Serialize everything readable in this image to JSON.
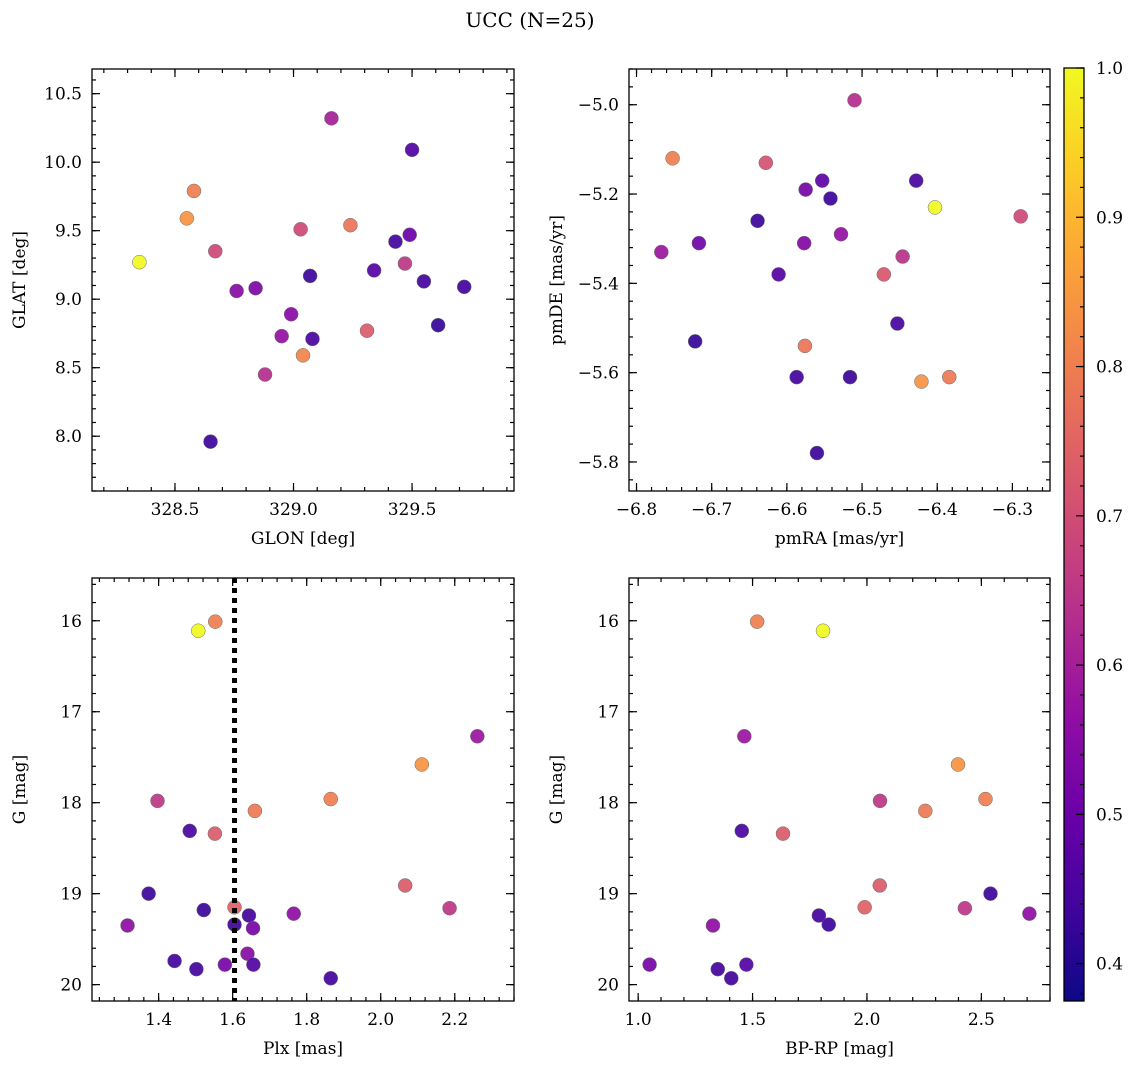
{
  "title": "UCC (N=25)",
  "colorbar": {
    "range": [
      0.375,
      1.0
    ],
    "ticks": [
      "0.4",
      "0.5",
      "0.6",
      "0.7",
      "0.8",
      "0.9",
      "1.0"
    ],
    "tick_values": [
      0.4,
      0.5,
      0.6,
      0.7,
      0.8,
      0.9,
      1.0
    ],
    "colormap": "plasma"
  },
  "chart_data": [
    {
      "type": "scatter",
      "xlabel": "GLON [deg]",
      "ylabel": "GLAT [deg]",
      "xlim": [
        328.15,
        329.93
      ],
      "ylim": [
        7.6,
        10.68
      ],
      "xticks": [
        328.5,
        329.0,
        329.5
      ],
      "xtick_labels": [
        "328.5",
        "329.0",
        "329.5"
      ],
      "yticks": [
        8.0,
        8.5,
        9.0,
        9.5,
        10.0,
        10.5
      ],
      "ytick_labels": [
        "8.0",
        "8.5",
        "9.0",
        "9.5",
        "10.0",
        "10.5"
      ],
      "invert_y": false,
      "dotted_vline": null,
      "points": [
        {
          "x": 328.35,
          "y": 9.27,
          "c": 1.0
        },
        {
          "x": 328.58,
          "y": 9.79,
          "c": 0.8
        },
        {
          "x": 328.55,
          "y": 9.59,
          "c": 0.84
        },
        {
          "x": 328.67,
          "y": 9.35,
          "c": 0.69
        },
        {
          "x": 328.65,
          "y": 7.96,
          "c": 0.43
        },
        {
          "x": 328.76,
          "y": 9.06,
          "c": 0.55
        },
        {
          "x": 328.84,
          "y": 9.08,
          "c": 0.53
        },
        {
          "x": 328.88,
          "y": 8.45,
          "c": 0.63
        },
        {
          "x": 328.95,
          "y": 8.73,
          "c": 0.57
        },
        {
          "x": 328.99,
          "y": 8.89,
          "c": 0.55
        },
        {
          "x": 329.03,
          "y": 9.51,
          "c": 0.69
        },
        {
          "x": 329.04,
          "y": 8.59,
          "c": 0.81
        },
        {
          "x": 329.07,
          "y": 9.17,
          "c": 0.43
        },
        {
          "x": 329.08,
          "y": 8.71,
          "c": 0.45
        },
        {
          "x": 329.16,
          "y": 10.32,
          "c": 0.6
        },
        {
          "x": 329.24,
          "y": 9.54,
          "c": 0.78
        },
        {
          "x": 329.31,
          "y": 8.77,
          "c": 0.73
        },
        {
          "x": 329.34,
          "y": 9.21,
          "c": 0.47
        },
        {
          "x": 329.43,
          "y": 9.42,
          "c": 0.44
        },
        {
          "x": 329.47,
          "y": 9.26,
          "c": 0.65
        },
        {
          "x": 329.49,
          "y": 9.47,
          "c": 0.5
        },
        {
          "x": 329.5,
          "y": 10.09,
          "c": 0.46
        },
        {
          "x": 329.55,
          "y": 9.13,
          "c": 0.44
        },
        {
          "x": 329.61,
          "y": 8.81,
          "c": 0.42
        },
        {
          "x": 329.72,
          "y": 9.09,
          "c": 0.44
        }
      ]
    },
    {
      "type": "scatter",
      "xlabel": "pmRA [mas/yr]",
      "ylabel": "pmDE [mas/yr]",
      "xlim": [
        -6.81,
        -6.25
      ],
      "ylim": [
        -5.865,
        -4.92
      ],
      "xticks": [
        -6.8,
        -6.7,
        -6.6,
        -6.5,
        -6.4,
        -6.3
      ],
      "xtick_labels": [
        "−6.8",
        "−6.7",
        "−6.6",
        "−6.5",
        "−6.4",
        "−6.3"
      ],
      "yticks": [
        -5.8,
        -5.6,
        -5.4,
        -5.2,
        -5.0
      ],
      "ytick_labels": [
        "−5.8",
        "−5.6",
        "−5.4",
        "−5.2",
        "−5.0"
      ],
      "invert_y": false,
      "dotted_vline": null,
      "points": [
        {
          "x": -6.51,
          "y": -4.99,
          "c": 0.63
        },
        {
          "x": -6.752,
          "y": -5.12,
          "c": 0.8
        },
        {
          "x": -6.628,
          "y": -5.13,
          "c": 0.71
        },
        {
          "x": -6.575,
          "y": -5.19,
          "c": 0.52
        },
        {
          "x": -6.553,
          "y": -5.17,
          "c": 0.48
        },
        {
          "x": -6.542,
          "y": -5.21,
          "c": 0.43
        },
        {
          "x": -6.428,
          "y": -5.17,
          "c": 0.45
        },
        {
          "x": -6.403,
          "y": -5.23,
          "c": 1.0
        },
        {
          "x": -6.289,
          "y": -5.25,
          "c": 0.69
        },
        {
          "x": -6.639,
          "y": -5.26,
          "c": 0.43
        },
        {
          "x": -6.528,
          "y": -5.29,
          "c": 0.57
        },
        {
          "x": -6.717,
          "y": -5.31,
          "c": 0.51
        },
        {
          "x": -6.577,
          "y": -5.31,
          "c": 0.54
        },
        {
          "x": -6.767,
          "y": -5.33,
          "c": 0.58
        },
        {
          "x": -6.446,
          "y": -5.34,
          "c": 0.64
        },
        {
          "x": -6.611,
          "y": -5.38,
          "c": 0.47
        },
        {
          "x": -6.471,
          "y": -5.38,
          "c": 0.72
        },
        {
          "x": -6.453,
          "y": -5.49,
          "c": 0.45
        },
        {
          "x": -6.722,
          "y": -5.53,
          "c": 0.42
        },
        {
          "x": -6.576,
          "y": -5.54,
          "c": 0.78
        },
        {
          "x": -6.587,
          "y": -5.61,
          "c": 0.44
        },
        {
          "x": -6.516,
          "y": -5.61,
          "c": 0.43
        },
        {
          "x": -6.421,
          "y": -5.62,
          "c": 0.84
        },
        {
          "x": -6.384,
          "y": -5.61,
          "c": 0.79
        },
        {
          "x": -6.56,
          "y": -5.78,
          "c": 0.43
        }
      ]
    },
    {
      "type": "scatter",
      "xlabel": "Plx [mas]",
      "ylabel": "G [mag]",
      "xlim": [
        1.22,
        2.36
      ],
      "ylim": [
        20.18,
        15.53
      ],
      "xticks": [
        1.4,
        1.6,
        1.8,
        2.0,
        2.2
      ],
      "xtick_labels": [
        "1.4",
        "1.6",
        "1.8",
        "2.0",
        "2.2"
      ],
      "yticks": [
        16,
        17,
        18,
        19,
        20
      ],
      "ytick_labels": [
        "16",
        "17",
        "18",
        "19",
        "20"
      ],
      "invert_y": true,
      "dotted_vline": 1.605,
      "points": [
        {
          "x": 1.507,
          "y": 16.11,
          "c": 1.0
        },
        {
          "x": 1.553,
          "y": 16.01,
          "c": 0.8
        },
        {
          "x": 2.261,
          "y": 17.27,
          "c": 0.58
        },
        {
          "x": 2.111,
          "y": 17.58,
          "c": 0.84
        },
        {
          "x": 1.397,
          "y": 17.98,
          "c": 0.65
        },
        {
          "x": 1.865,
          "y": 17.96,
          "c": 0.8
        },
        {
          "x": 1.66,
          "y": 18.09,
          "c": 0.79
        },
        {
          "x": 1.484,
          "y": 18.31,
          "c": 0.45
        },
        {
          "x": 1.552,
          "y": 18.34,
          "c": 0.73
        },
        {
          "x": 1.373,
          "y": 19.0,
          "c": 0.43
        },
        {
          "x": 2.066,
          "y": 18.91,
          "c": 0.73
        },
        {
          "x": 2.186,
          "y": 19.16,
          "c": 0.65
        },
        {
          "x": 1.522,
          "y": 19.18,
          "c": 0.43
        },
        {
          "x": 1.605,
          "y": 19.15,
          "c": 0.74
        },
        {
          "x": 1.644,
          "y": 19.24,
          "c": 0.44
        },
        {
          "x": 1.765,
          "y": 19.22,
          "c": 0.56
        },
        {
          "x": 1.316,
          "y": 19.35,
          "c": 0.56
        },
        {
          "x": 1.605,
          "y": 19.34,
          "c": 0.43
        },
        {
          "x": 1.655,
          "y": 19.38,
          "c": 0.52
        },
        {
          "x": 1.64,
          "y": 19.66,
          "c": 0.55
        },
        {
          "x": 1.443,
          "y": 19.74,
          "c": 0.44
        },
        {
          "x": 1.579,
          "y": 19.78,
          "c": 0.52
        },
        {
          "x": 1.656,
          "y": 19.78,
          "c": 0.46
        },
        {
          "x": 1.502,
          "y": 19.83,
          "c": 0.44
        },
        {
          "x": 1.865,
          "y": 19.93,
          "c": 0.44
        }
      ]
    },
    {
      "type": "scatter",
      "xlabel": "BP-RP [mag]",
      "ylabel": "G [mag]",
      "xlim": [
        0.96,
        2.8
      ],
      "ylim": [
        20.18,
        15.53
      ],
      "xticks": [
        1.0,
        1.5,
        2.0,
        2.5
      ],
      "xtick_labels": [
        "1.0",
        "1.5",
        "2.0",
        "2.5"
      ],
      "yticks": [
        16,
        17,
        18,
        19,
        20
      ],
      "ytick_labels": [
        "16",
        "17",
        "18",
        "19",
        "20"
      ],
      "invert_y": true,
      "dotted_vline": null,
      "points": [
        {
          "x": 1.52,
          "y": 16.01,
          "c": 0.8
        },
        {
          "x": 1.808,
          "y": 16.11,
          "c": 1.0
        },
        {
          "x": 1.464,
          "y": 17.27,
          "c": 0.58
        },
        {
          "x": 2.398,
          "y": 17.58,
          "c": 0.84
        },
        {
          "x": 2.057,
          "y": 17.98,
          "c": 0.65
        },
        {
          "x": 2.518,
          "y": 17.96,
          "c": 0.8
        },
        {
          "x": 2.255,
          "y": 18.09,
          "c": 0.79
        },
        {
          "x": 1.453,
          "y": 18.31,
          "c": 0.45
        },
        {
          "x": 1.633,
          "y": 18.34,
          "c": 0.73
        },
        {
          "x": 2.54,
          "y": 19.0,
          "c": 0.43
        },
        {
          "x": 2.056,
          "y": 18.91,
          "c": 0.73
        },
        {
          "x": 1.99,
          "y": 19.15,
          "c": 0.74
        },
        {
          "x": 2.428,
          "y": 19.16,
          "c": 0.65
        },
        {
          "x": 1.79,
          "y": 19.24,
          "c": 0.44
        },
        {
          "x": 2.71,
          "y": 19.22,
          "c": 0.56
        },
        {
          "x": 1.833,
          "y": 19.34,
          "c": 0.43
        },
        {
          "x": 1.327,
          "y": 19.35,
          "c": 0.56
        },
        {
          "x": 1.05,
          "y": 19.78,
          "c": 0.52
        },
        {
          "x": 1.473,
          "y": 19.78,
          "c": 0.46
        },
        {
          "x": 1.348,
          "y": 19.83,
          "c": 0.44
        },
        {
          "x": 1.407,
          "y": 19.93,
          "c": 0.44
        }
      ]
    }
  ]
}
